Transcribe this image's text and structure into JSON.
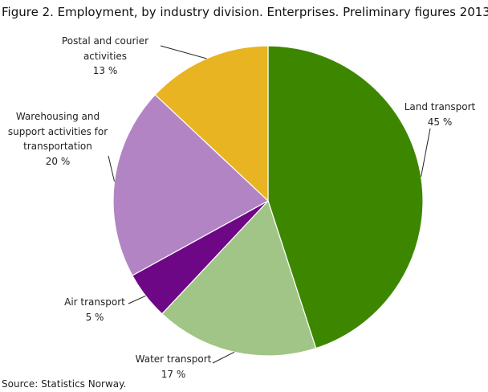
{
  "chart_data": {
    "type": "pie",
    "title": "Figure 2. Employment, by industry division. Enterprises. Preliminary figures 2013",
    "categories": [
      "Land transport",
      "Water transport",
      "Air transport",
      "Warehousing and support activities for transportation",
      "Postal and courier activities"
    ],
    "values": [
      45,
      17,
      5,
      20,
      13
    ],
    "value_labels": [
      "45 %",
      "17 %",
      "5 %",
      "20 %",
      "13 %"
    ],
    "colors": [
      "#3d8700",
      "#a1c586",
      "#6e0786",
      "#b384c4",
      "#e9b422"
    ],
    "source": "Source: Statistics Norway."
  }
}
